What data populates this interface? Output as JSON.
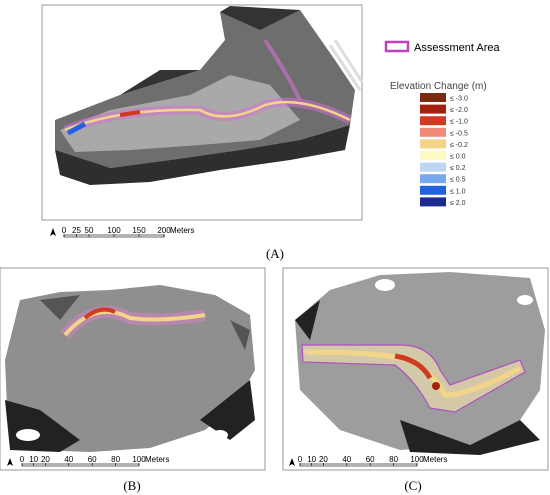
{
  "panel_a": {
    "label": "(A)",
    "scale_bar": {
      "ticks": [
        "0",
        "25",
        "50",
        "100",
        "150",
        "200"
      ],
      "unit": "Meters"
    }
  },
  "legend": {
    "boundary": "Assessment Area",
    "title": "Elevation Change (m)",
    "items": [
      {
        "label": "≤ -3.0",
        "color": "#7b2b12"
      },
      {
        "label": "≤ -2.0",
        "color": "#a3200f"
      },
      {
        "label": "≤ -1.0",
        "color": "#cf3b22"
      },
      {
        "label": "≤ -0.5",
        "color": "#f28a7a"
      },
      {
        "label": "≤ -0.2",
        "color": "#f3d58a"
      },
      {
        "label": "≤ 0.0",
        "color": "#fdfac4"
      },
      {
        "label": "≤ 0.2",
        "color": "#bfd6f2"
      },
      {
        "label": "≤ 0.5",
        "color": "#78a8ee"
      },
      {
        "label": "≤ 1.0",
        "color": "#2262e0"
      },
      {
        "label": "≤ 2.0",
        "color": "#1c2b8e"
      }
    ]
  },
  "panel_b": {
    "label": "(B)",
    "scale_bar": {
      "ticks": [
        "0",
        "10",
        "20",
        "40",
        "60",
        "80",
        "100"
      ],
      "unit": "Meters"
    }
  },
  "panel_c": {
    "label": "(C)",
    "scale_bar": {
      "ticks": [
        "0",
        "10",
        "20",
        "40",
        "60",
        "80",
        "100"
      ],
      "unit": "Meters"
    }
  }
}
